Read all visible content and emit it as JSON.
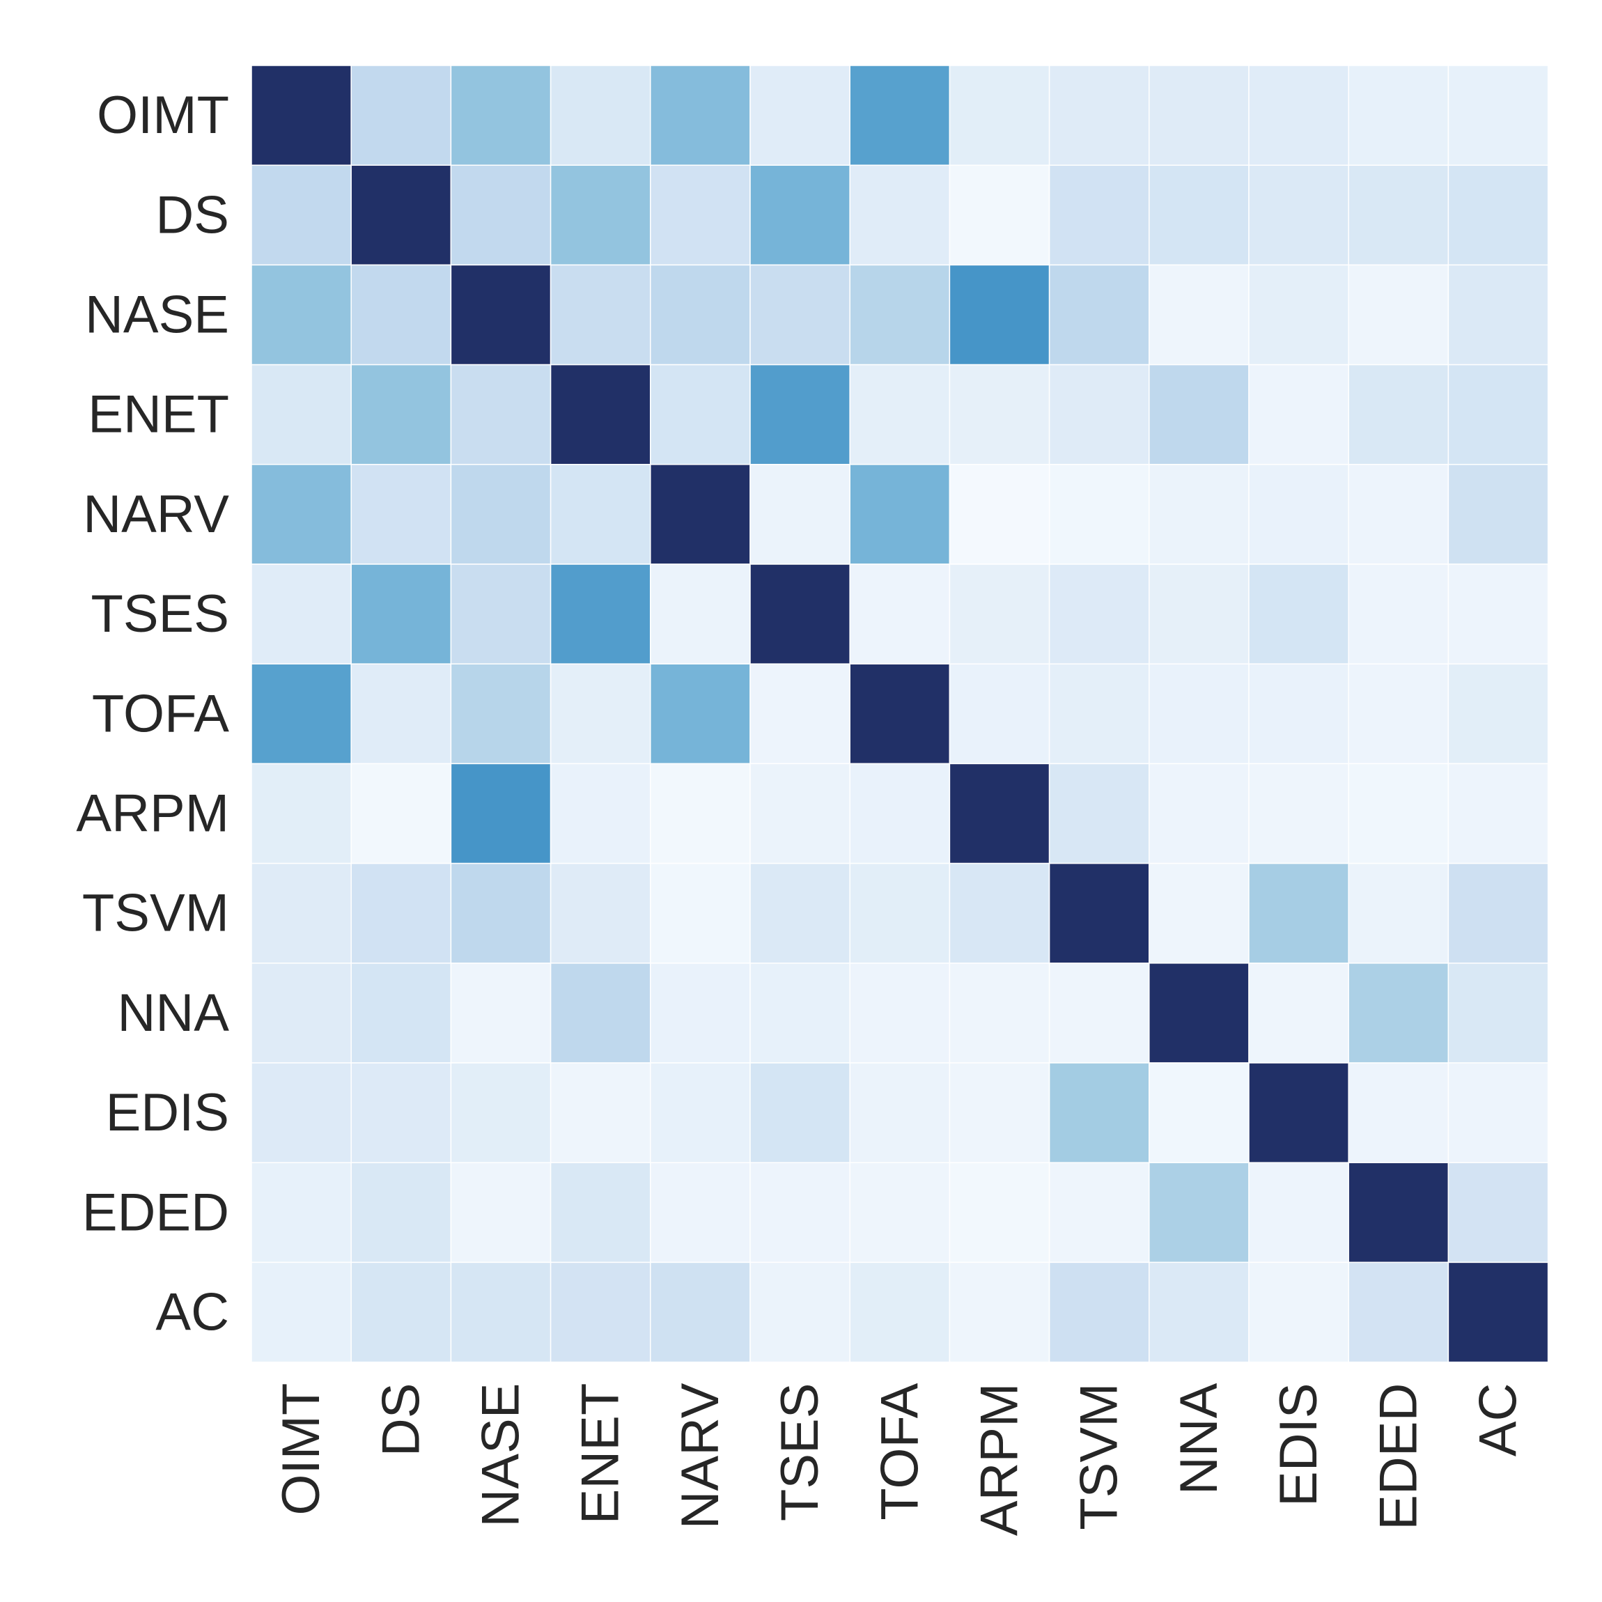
{
  "chart_data": {
    "type": "heatmap",
    "title": "",
    "xlabel": "",
    "ylabel": "",
    "colormap": [
      "#f7fbff",
      "#deebf7",
      "#c6dbef",
      "#9ecae1",
      "#6baed6",
      "#4292c6",
      "#2171b5",
      "#213067"
    ],
    "value_range": [
      0,
      1
    ],
    "rows": [
      "OIMT",
      "DS",
      "NASE",
      "ENET",
      "NARV",
      "TSES",
      "TOFA",
      "ARPM",
      "TSVM",
      "NNA",
      "EDIS",
      "EDED",
      "AC"
    ],
    "columns": [
      "OIMT",
      "DS",
      "NASE",
      "ENET",
      "NARV",
      "TSES",
      "TOFA",
      "ARPM",
      "TSVM",
      "NNA",
      "EDIS",
      "EDED",
      "AC"
    ],
    "values": [
      [
        1.0,
        0.3,
        0.46,
        0.17,
        0.5,
        0.13,
        0.64,
        0.12,
        0.14,
        0.14,
        0.13,
        0.09,
        0.09
      ],
      [
        0.3,
        1.0,
        0.3,
        0.46,
        0.22,
        0.54,
        0.13,
        0.03,
        0.22,
        0.2,
        0.16,
        0.17,
        0.2
      ],
      [
        0.46,
        0.3,
        1.0,
        0.27,
        0.31,
        0.27,
        0.34,
        0.7,
        0.31,
        0.05,
        0.11,
        0.05,
        0.16
      ],
      [
        0.17,
        0.46,
        0.27,
        1.0,
        0.2,
        0.66,
        0.11,
        0.1,
        0.14,
        0.31,
        0.06,
        0.17,
        0.2
      ],
      [
        0.5,
        0.22,
        0.31,
        0.2,
        1.0,
        0.07,
        0.54,
        0.02,
        0.04,
        0.07,
        0.08,
        0.06,
        0.23
      ],
      [
        0.13,
        0.54,
        0.27,
        0.66,
        0.07,
        1.0,
        0.06,
        0.1,
        0.15,
        0.1,
        0.2,
        0.06,
        0.06
      ],
      [
        0.64,
        0.13,
        0.34,
        0.11,
        0.54,
        0.06,
        1.0,
        0.08,
        0.11,
        0.08,
        0.08,
        0.06,
        0.12
      ],
      [
        0.12,
        0.03,
        0.7,
        0.08,
        0.03,
        0.07,
        0.08,
        1.0,
        0.18,
        0.06,
        0.05,
        0.04,
        0.06
      ],
      [
        0.14,
        0.22,
        0.31,
        0.14,
        0.04,
        0.16,
        0.12,
        0.18,
        1.0,
        0.05,
        0.4,
        0.07,
        0.24
      ],
      [
        0.14,
        0.2,
        0.05,
        0.31,
        0.08,
        0.09,
        0.06,
        0.05,
        0.05,
        1.0,
        0.05,
        0.38,
        0.17
      ],
      [
        0.15,
        0.15,
        0.12,
        0.05,
        0.09,
        0.2,
        0.07,
        0.05,
        0.41,
        0.04,
        1.0,
        0.06,
        0.06
      ],
      [
        0.09,
        0.17,
        0.05,
        0.17,
        0.06,
        0.06,
        0.05,
        0.03,
        0.05,
        0.38,
        0.06,
        1.0,
        0.21
      ],
      [
        0.09,
        0.19,
        0.19,
        0.21,
        0.23,
        0.07,
        0.12,
        0.05,
        0.24,
        0.16,
        0.05,
        0.21,
        1.0
      ]
    ],
    "grid": true,
    "colorbar": false
  }
}
